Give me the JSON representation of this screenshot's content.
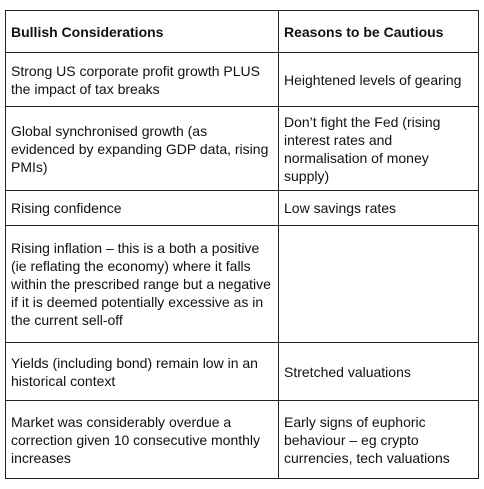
{
  "table": {
    "header": [
      "Bullish Considerations",
      "Reasons to be Cautious"
    ],
    "rows": [
      [
        "Strong US corporate profit growth PLUS the impact of tax breaks",
        "Heightened levels of gearing"
      ],
      [
        "Global synchronised growth (as evidenced by expanding GDP data, rising PMIs)",
        "Don’t fight the Fed (rising interest rates and normalisation of money supply)"
      ],
      [
        "Rising confidence",
        "Low savings rates"
      ],
      [
        "Rising inflation – this is a both a positive (ie reflating the economy) where it falls within the prescribed range but a negative if it is deemed potentially excessive as in the current sell-off",
        null
      ],
      [
        "Yields (including bond) remain low in an historical context",
        "Stretched valuations"
      ],
      [
        "Market was considerably overdue a correction given 10 consecutive monthly increases",
        "Early signs of euphoric behaviour – eg crypto currencies, tech valuations"
      ]
    ]
  }
}
